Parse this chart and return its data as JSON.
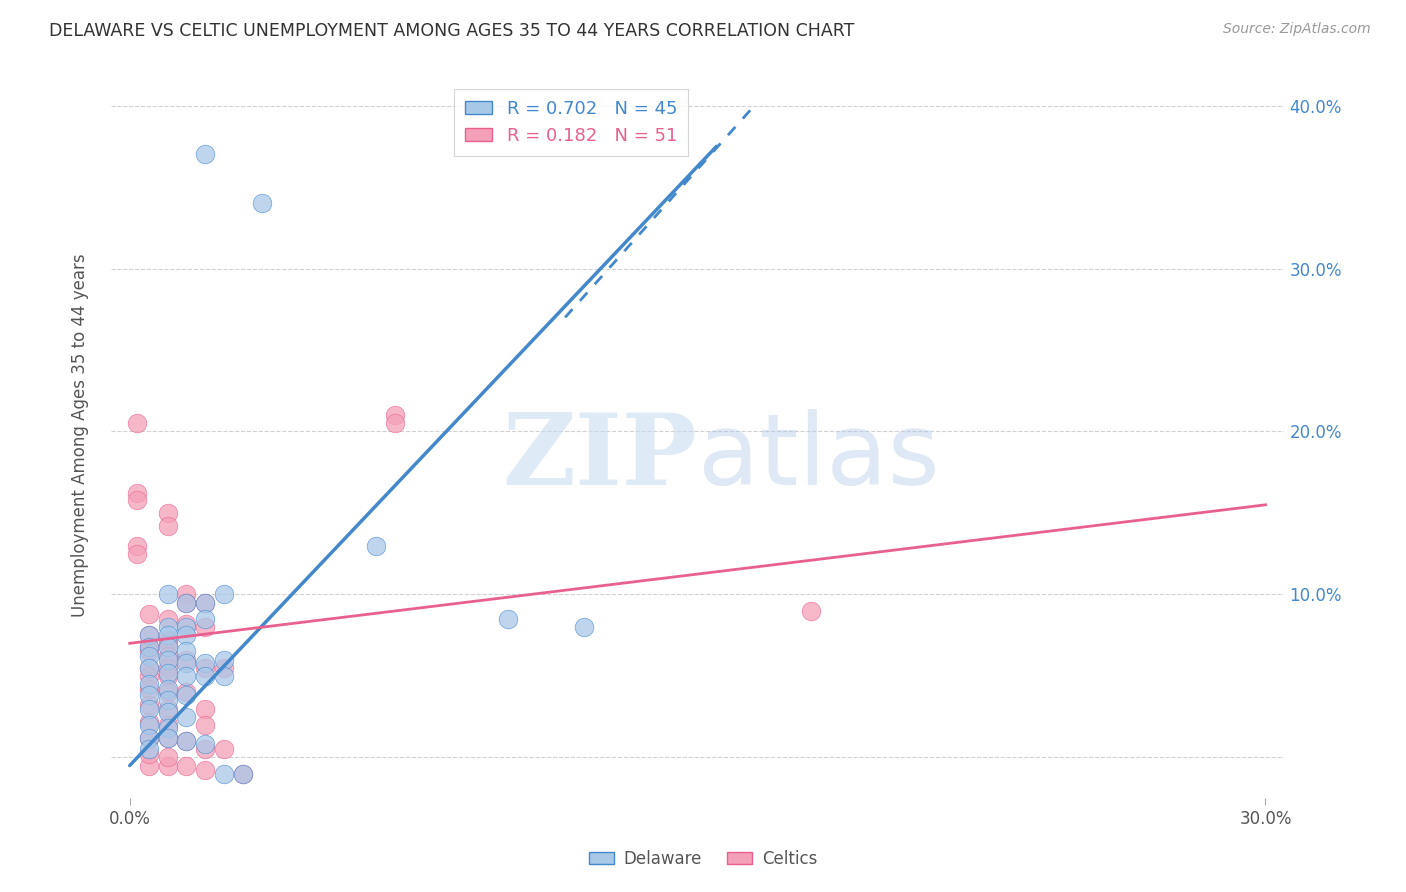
{
  "title": "DELAWARE VS CELTIC UNEMPLOYMENT AMONG AGES 35 TO 44 YEARS CORRELATION CHART",
  "source": "Source: ZipAtlas.com",
  "ylabel": "Unemployment Among Ages 35 to 44 years",
  "xlabel": "",
  "xlim": [
    -0.005,
    0.305
  ],
  "ylim": [
    -0.025,
    0.42
  ],
  "xtick_positions": [
    0.0,
    0.3
  ],
  "xtick_labels": [
    "0.0%",
    "30.0%"
  ],
  "ytick_positions": [
    0.0,
    0.1,
    0.2,
    0.3,
    0.4
  ],
  "ytick_labels_right": [
    "",
    "10.0%",
    "20.0%",
    "30.0%",
    "40.0%"
  ],
  "legend_blue_r": "0.702",
  "legend_blue_n": "45",
  "legend_pink_r": "0.182",
  "legend_pink_n": "51",
  "blue_color": "#a8c8e8",
  "pink_color": "#f4a0b8",
  "blue_line_color": "#4488cc",
  "pink_line_color": "#e86090",
  "blue_scatter": [
    [
      0.02,
      0.37
    ],
    [
      0.035,
      0.34
    ],
    [
      0.065,
      0.13
    ],
    [
      0.1,
      0.085
    ],
    [
      0.01,
      0.1
    ],
    [
      0.015,
      0.095
    ],
    [
      0.02,
      0.095
    ],
    [
      0.025,
      0.1
    ],
    [
      0.01,
      0.08
    ],
    [
      0.015,
      0.08
    ],
    [
      0.02,
      0.085
    ],
    [
      0.005,
      0.075
    ],
    [
      0.01,
      0.075
    ],
    [
      0.015,
      0.075
    ],
    [
      0.005,
      0.068
    ],
    [
      0.01,
      0.068
    ],
    [
      0.015,
      0.065
    ],
    [
      0.005,
      0.062
    ],
    [
      0.01,
      0.06
    ],
    [
      0.015,
      0.058
    ],
    [
      0.02,
      0.058
    ],
    [
      0.025,
      0.06
    ],
    [
      0.005,
      0.055
    ],
    [
      0.01,
      0.052
    ],
    [
      0.015,
      0.05
    ],
    [
      0.02,
      0.05
    ],
    [
      0.025,
      0.05
    ],
    [
      0.005,
      0.045
    ],
    [
      0.01,
      0.042
    ],
    [
      0.005,
      0.038
    ],
    [
      0.01,
      0.035
    ],
    [
      0.015,
      0.038
    ],
    [
      0.005,
      0.03
    ],
    [
      0.01,
      0.028
    ],
    [
      0.015,
      0.025
    ],
    [
      0.005,
      0.02
    ],
    [
      0.01,
      0.018
    ],
    [
      0.005,
      0.012
    ],
    [
      0.01,
      0.012
    ],
    [
      0.015,
      0.01
    ],
    [
      0.02,
      0.008
    ],
    [
      0.12,
      0.08
    ],
    [
      0.005,
      0.005
    ],
    [
      0.025,
      -0.01
    ],
    [
      0.03,
      -0.01
    ]
  ],
  "pink_scatter": [
    [
      0.002,
      0.205
    ],
    [
      0.002,
      0.162
    ],
    [
      0.002,
      0.158
    ],
    [
      0.01,
      0.15
    ],
    [
      0.01,
      0.142
    ],
    [
      0.002,
      0.13
    ],
    [
      0.002,
      0.125
    ],
    [
      0.07,
      0.21
    ],
    [
      0.07,
      0.205
    ],
    [
      0.015,
      0.1
    ],
    [
      0.015,
      0.095
    ],
    [
      0.02,
      0.095
    ],
    [
      0.005,
      0.088
    ],
    [
      0.01,
      0.085
    ],
    [
      0.015,
      0.082
    ],
    [
      0.02,
      0.08
    ],
    [
      0.005,
      0.075
    ],
    [
      0.01,
      0.072
    ],
    [
      0.01,
      0.07
    ],
    [
      0.005,
      0.068
    ],
    [
      0.005,
      0.065
    ],
    [
      0.01,
      0.062
    ],
    [
      0.015,
      0.06
    ],
    [
      0.005,
      0.055
    ],
    [
      0.01,
      0.055
    ],
    [
      0.02,
      0.055
    ],
    [
      0.025,
      0.055
    ],
    [
      0.005,
      0.05
    ],
    [
      0.01,
      0.05
    ],
    [
      0.005,
      0.042
    ],
    [
      0.01,
      0.04
    ],
    [
      0.015,
      0.04
    ],
    [
      0.005,
      0.032
    ],
    [
      0.01,
      0.03
    ],
    [
      0.02,
      0.03
    ],
    [
      0.005,
      0.022
    ],
    [
      0.01,
      0.02
    ],
    [
      0.02,
      0.02
    ],
    [
      0.005,
      0.012
    ],
    [
      0.01,
      0.012
    ],
    [
      0.015,
      0.01
    ],
    [
      0.02,
      0.005
    ],
    [
      0.025,
      0.005
    ],
    [
      0.005,
      -0.005
    ],
    [
      0.01,
      -0.005
    ],
    [
      0.015,
      -0.005
    ],
    [
      0.02,
      -0.008
    ],
    [
      0.03,
      -0.01
    ],
    [
      0.18,
      0.09
    ],
    [
      0.005,
      0.002
    ],
    [
      0.01,
      0.0
    ]
  ],
  "blue_trendline_solid": [
    [
      0.0,
      -0.005
    ],
    [
      0.155,
      0.375
    ]
  ],
  "blue_trendline_dashed": [
    [
      0.115,
      0.27
    ],
    [
      0.165,
      0.4
    ]
  ],
  "pink_trendline": [
    [
      0.0,
      0.07
    ],
    [
      0.3,
      0.155
    ]
  ],
  "watermark_zip": "ZIP",
  "watermark_atlas": "atlas",
  "background_color": "#ffffff",
  "grid_color": "#cccccc",
  "bottom_legend_labels": [
    "Delaware",
    "Celtics"
  ]
}
